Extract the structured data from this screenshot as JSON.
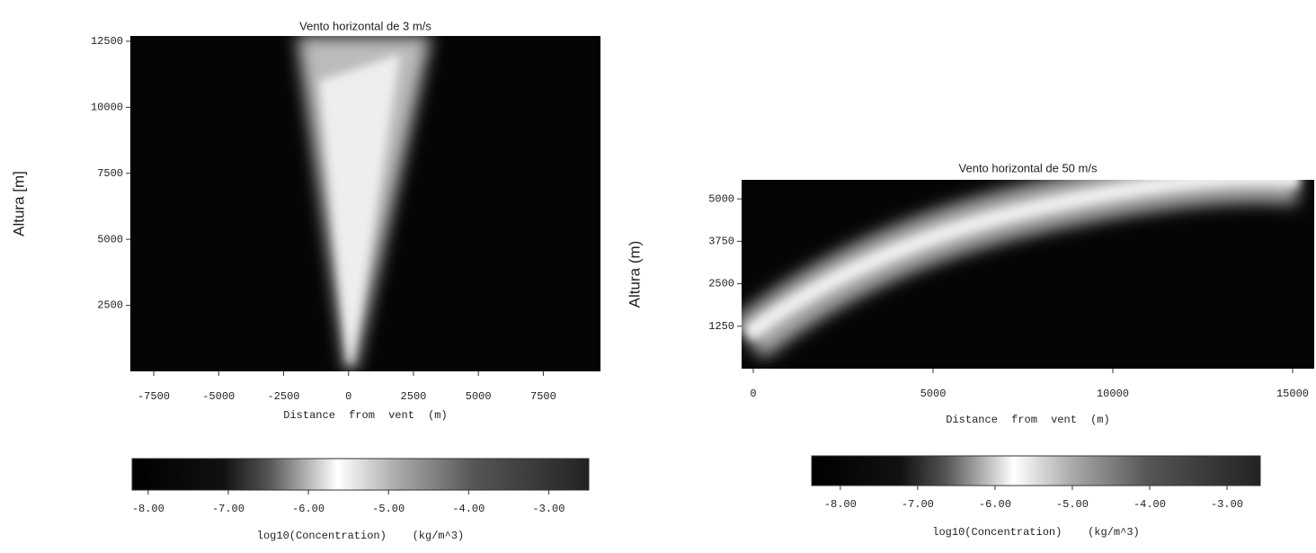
{
  "chart_data": [
    {
      "type": "heatmap",
      "title": "Vento horizontal de 3 m/s",
      "xlabel": "Distance from vent (m)",
      "ylabel": "Altura [m]",
      "xlim": [
        -8400,
        9700
      ],
      "xticks": [
        -7500,
        -5000,
        -2500,
        0,
        2500,
        5000,
        7500
      ],
      "ylim": [
        0,
        12700
      ],
      "yticks": [
        2500,
        5000,
        7500,
        10000,
        12500
      ],
      "colorbar": {
        "label": "log10(Concentration)    (kg/m^3)",
        "xlim": [
          -8.2,
          -2.5
        ],
        "ticks": [
          {
            "value": -8,
            "label": "-8.00"
          },
          {
            "value": -7,
            "label": "-7.00"
          },
          {
            "value": -6,
            "label": "-6.00"
          },
          {
            "value": -5,
            "label": "-5.00"
          },
          {
            "value": -4,
            "label": "-4.00"
          },
          {
            "value": -3,
            "label": "-3.00"
          }
        ]
      }
    },
    {
      "type": "heatmap",
      "title": "Vento horizontal de 50 m/s",
      "xlabel": "Distance from vent (m)",
      "ylabel": "Altura (m)",
      "xlim": [
        -325,
        15600
      ],
      "xticks": [
        0,
        5000,
        10000,
        15000
      ],
      "ylim": [
        0,
        5560
      ],
      "yticks": [
        1250,
        2500,
        3750,
        5000
      ],
      "colorbar": {
        "label": "log10(Concentration)    (kg/m^3)",
        "xlim": [
          -8.37,
          -2.57
        ],
        "ticks": [
          {
            "value": -8,
            "label": "-8.00"
          },
          {
            "value": -7,
            "label": "-7.00"
          },
          {
            "value": -6,
            "label": "-6.00"
          },
          {
            "value": -5,
            "label": "-5.00"
          },
          {
            "value": -4,
            "label": "-4.00"
          },
          {
            "value": -3,
            "label": "-3.00"
          }
        ]
      }
    }
  ]
}
